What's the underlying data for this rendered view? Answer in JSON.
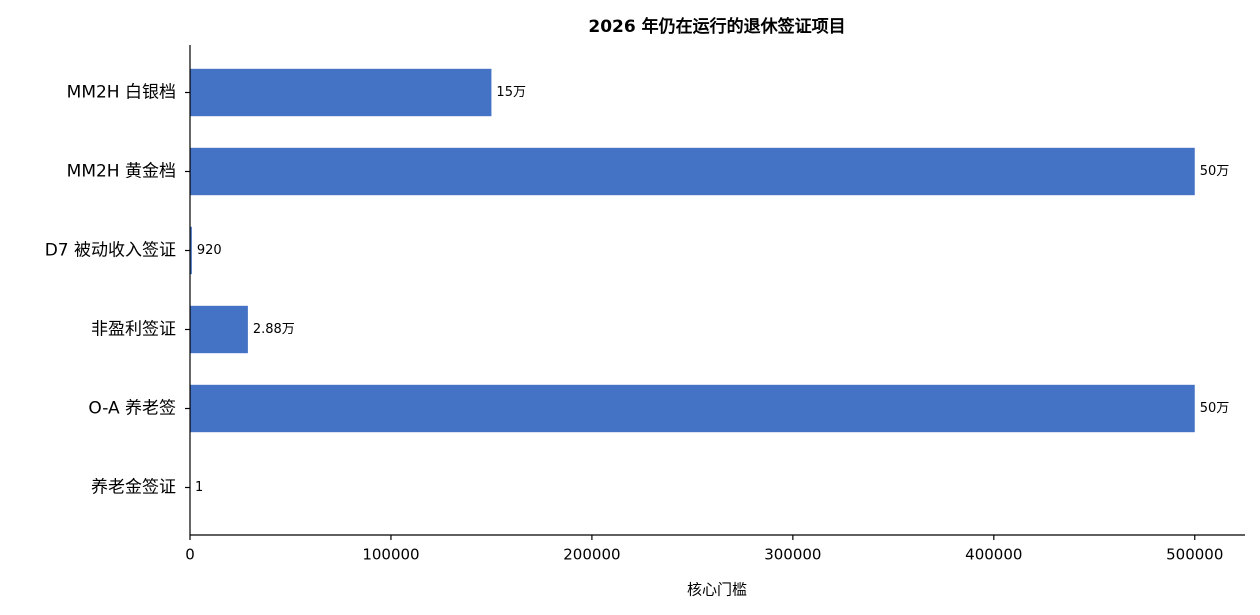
{
  "chart_data": {
    "type": "barh",
    "title": "2026 年仍在运行的退休签证项目",
    "xlabel": "核心门槛",
    "categories": [
      "MM2H 白银档",
      "MM2H 黄金档",
      "D7 被动收入签证",
      "非盈利签证",
      "O-A 养老签",
      "养老金签证"
    ],
    "values": [
      150000,
      500000,
      920,
      28800,
      500000,
      1
    ],
    "value_labels": [
      "15万",
      "50万",
      "920",
      "2.88万",
      "50万",
      "1"
    ],
    "color": "#4472c4",
    "xlim": [
      0,
      525000
    ],
    "xticks": [
      0,
      100000,
      200000,
      300000,
      400000,
      500000
    ],
    "grid": false
  }
}
